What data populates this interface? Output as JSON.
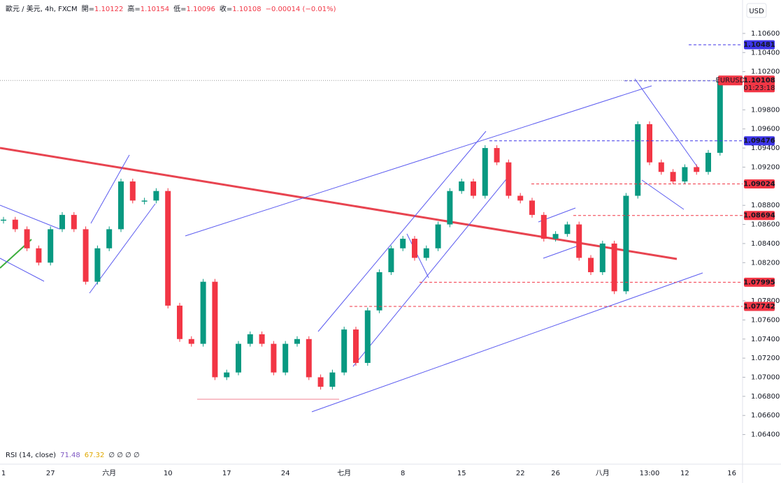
{
  "chart_data": {
    "type": "candlestick",
    "title": "歐元 / 美元, 4h, FXCM",
    "ohlc": [
      {
        "label": "開=",
        "value": 1.10122
      },
      {
        "label": "高=",
        "value": 1.10154
      },
      {
        "label": "低=",
        "value": 1.10096
      },
      {
        "label": "收=",
        "value": 1.10108
      }
    ],
    "change": "−0.00014 (−0.01%)",
    "currency": "USD",
    "categories": [
      "1",
      null,
      null,
      null,
      "27",
      null,
      null,
      null,
      null,
      "六月",
      null,
      null,
      null,
      null,
      "10",
      null,
      null,
      null,
      null,
      "17",
      null,
      null,
      null,
      null,
      "24",
      null,
      null,
      null,
      null,
      "七月",
      null,
      null,
      null,
      null,
      "8",
      null,
      null,
      null,
      null,
      "15",
      null,
      null,
      null,
      null,
      "22",
      null,
      null,
      "26",
      null,
      null,
      null,
      "八月",
      null,
      null,
      null,
      "13:00",
      null,
      null,
      "12",
      null,
      null,
      null,
      "16"
    ],
    "series": [
      {
        "name": "EURUSD",
        "up_color": "#089981",
        "down_color": "#f23645",
        "values": [
          1.0865,
          1.0855,
          1.0835,
          1.082,
          1.0855,
          1.087,
          1.0855,
          1.08,
          1.0835,
          1.0855,
          1.0905,
          1.0885,
          1.0885,
          1.0895,
          1.0775,
          1.074,
          1.0735,
          1.08,
          1.07,
          1.0705,
          1.0735,
          1.0745,
          1.0735,
          1.0705,
          1.0735,
          1.074,
          1.07,
          1.069,
          1.0705,
          1.075,
          1.0715,
          1.077,
          1.081,
          1.0835,
          1.0845,
          1.0825,
          1.0835,
          1.086,
          1.0895,
          1.0905,
          1.089,
          1.094,
          1.0925,
          1.089,
          1.0885,
          1.087,
          1.0845,
          1.085,
          1.086,
          1.0825,
          1.081,
          1.084,
          1.079,
          1.089,
          1.0965,
          1.0925,
          1.0915,
          1.0905,
          1.092,
          1.0915,
          1.0935,
          1.101,
          null
        ]
      }
    ],
    "ylim": [
      1.0609,
      1.1095
    ],
    "yticks": [
      {
        "value": 1.064,
        "label": "1.06400"
      },
      {
        "value": 1.066,
        "label": "1.06600"
      },
      {
        "value": 1.068,
        "label": "1.06800"
      },
      {
        "value": 1.07,
        "label": "1.07000"
      },
      {
        "value": 1.072,
        "label": "1.07200"
      },
      {
        "value": 1.074,
        "label": "1.07400"
      },
      {
        "value": 1.076,
        "label": "1.07600"
      },
      {
        "value": 1.078,
        "label": "1.07800"
      },
      {
        "value": 1.082,
        "label": "1.08200"
      },
      {
        "value": 1.084,
        "label": "1.08400"
      },
      {
        "value": 1.086,
        "label": "1.08600"
      },
      {
        "value": 1.088,
        "label": "1.08800"
      },
      {
        "value": 1.092,
        "label": "1.09200"
      },
      {
        "value": 1.094,
        "label": "1.09400"
      },
      {
        "value": 1.096,
        "label": "1.09600"
      },
      {
        "value": 1.098,
        "label": "1.09800"
      },
      {
        "value": 1.102,
        "label": "1.10200"
      },
      {
        "value": 1.104,
        "label": "1.10400"
      },
      {
        "value": 1.106,
        "label": "1.10600"
      }
    ],
    "price_lines": [
      {
        "value": 1.10481,
        "color": "#3d35e8"
      },
      {
        "value": 1.10104,
        "color": "#3d35e8"
      },
      {
        "value": 1.09476,
        "color": "#3d35e8"
      },
      {
        "value": 1.09024,
        "color": "#f23645"
      },
      {
        "value": 1.08694,
        "color": "#f23645"
      },
      {
        "value": 1.07995,
        "color": "#f23645"
      },
      {
        "value": 1.07742,
        "color": "#f23645"
      }
    ],
    "last_price": {
      "value": 1.10108,
      "countdown": "01:23:18",
      "color": "#f23645"
    },
    "indicator": {
      "label": "RSI (14, close)",
      "values": [
        71.48,
        67.32
      ],
      "value_colors": [
        "#7e57c2",
        "#e0a800"
      ],
      "placeholders": "∅ ∅ ∅ ∅"
    }
  }
}
